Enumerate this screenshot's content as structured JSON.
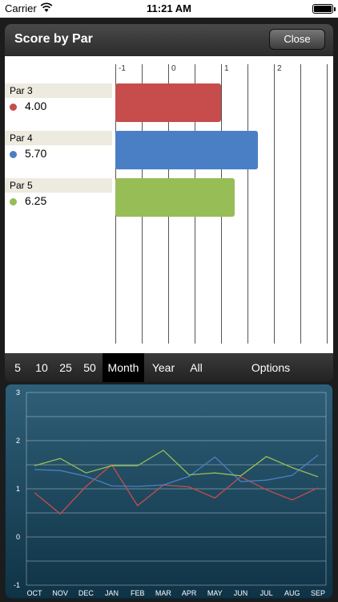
{
  "status_bar": {
    "carrier": "Carrier",
    "time": "11:21 AM"
  },
  "header": {
    "title": "Score by Par",
    "close_label": "Close"
  },
  "bar_chart": {
    "chart_data": {
      "type": "bar",
      "orientation": "horizontal",
      "categories": [
        "Par 3",
        "Par 4",
        "Par 5"
      ],
      "values": [
        "4.00",
        "5.70",
        "6.25"
      ],
      "colors": [
        "#c64d4c",
        "#4b7fc5",
        "#97bd56"
      ],
      "tick_labels": [
        "-1",
        "0",
        "1",
        "2"
      ]
    }
  },
  "ranges": [
    "5",
    "10",
    "25",
    "50",
    "Month",
    "Year",
    "All"
  ],
  "selected_range": "Month",
  "options_label": "Options",
  "line_chart": {
    "chart_data": {
      "type": "line",
      "x": [
        "OCT",
        "NOV",
        "DEC",
        "JAN",
        "FEB",
        "MAR",
        "APR",
        "MAY",
        "JUN",
        "JUL",
        "AUG",
        "SEP"
      ],
      "ylim": [
        -1,
        3
      ],
      "y_tick_labels": [
        "3",
        "2",
        "1",
        "0",
        "-1"
      ],
      "series": [
        {
          "color": "#c64d4c",
          "values": [
            0.92,
            0.48,
            1.05,
            1.5,
            0.65,
            1.08,
            1.04,
            0.81,
            1.25,
            0.98,
            0.77,
            1.02
          ]
        },
        {
          "color": "#4b7fc5",
          "values": [
            1.4,
            1.38,
            1.26,
            1.06,
            1.05,
            1.08,
            1.26,
            1.66,
            1.15,
            1.18,
            1.28,
            1.7
          ]
        },
        {
          "color": "#97bd56",
          "values": [
            1.48,
            1.63,
            1.33,
            1.48,
            1.48,
            1.8,
            1.29,
            1.33,
            1.27,
            1.67,
            1.44,
            1.25
          ]
        }
      ]
    }
  }
}
